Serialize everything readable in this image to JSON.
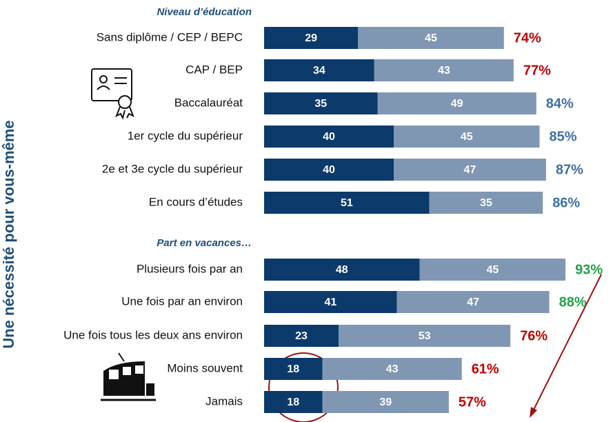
{
  "side_label": "Une nécessité pour vous-même",
  "chart_data": [
    {
      "type": "stacked-bar",
      "title": "Niveau d’éducation",
      "categories": [
        "Sans diplôme / CEP / BEPC",
        "CAP / BEP",
        "Baccalauréat",
        "1er cycle du supérieur",
        "2e et 3e cycle du supérieur",
        "En cours d’études"
      ],
      "series": [
        {
          "color": "#0b3a6b",
          "values": [
            29,
            34,
            35,
            40,
            40,
            51
          ]
        },
        {
          "color": "#8097b4",
          "values": [
            45,
            43,
            49,
            45,
            47,
            35
          ]
        }
      ],
      "totals": [
        74,
        77,
        84,
        85,
        87,
        86
      ],
      "total_labels": [
        "74%",
        "77%",
        "84%",
        "85%",
        "87%",
        "86%"
      ],
      "total_colors": [
        "#c00000",
        "#c00000",
        "#3f6fa6",
        "#3f6fa6",
        "#3f6fa6",
        "#3f6fa6"
      ]
    },
    {
      "type": "stacked-bar",
      "title": "Part en vacances…",
      "categories": [
        "Plusieurs fois par an",
        "Une fois par an environ",
        "Une fois tous les deux ans environ",
        "Moins souvent",
        "Jamais"
      ],
      "series": [
        {
          "color": "#0b3a6b",
          "values": [
            48,
            41,
            23,
            18,
            18
          ]
        },
        {
          "color": "#8097b4",
          "values": [
            45,
            47,
            53,
            43,
            39
          ]
        }
      ],
      "totals": [
        93,
        88,
        76,
        61,
        57
      ],
      "total_labels": [
        "93%",
        "88%",
        "76%",
        "61%",
        "57%"
      ],
      "total_colors": [
        "#1fa347",
        "#1fa347",
        "#c00000",
        "#c00000",
        "#c00000"
      ]
    }
  ]
}
